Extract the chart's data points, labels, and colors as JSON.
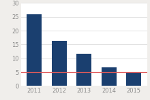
{
  "years": [
    "2011",
    "2012",
    "2013",
    "2014",
    "2015"
  ],
  "values": [
    26.0,
    16.4,
    11.7,
    6.7,
    5.0
  ],
  "bar_color": "#1a3f6f",
  "human_error_rate": 5.1,
  "human_line_color": "#e05a5a",
  "ylim": [
    0,
    30
  ],
  "yticks": [
    0,
    5,
    10,
    15,
    20,
    25,
    30
  ],
  "plot_bg_color": "#ffffff",
  "fig_bg_color": "#f0eeeb",
  "grid_color": "#dddddd",
  "tick_label_fontsize": 6.0,
  "tick_color": "#888888"
}
